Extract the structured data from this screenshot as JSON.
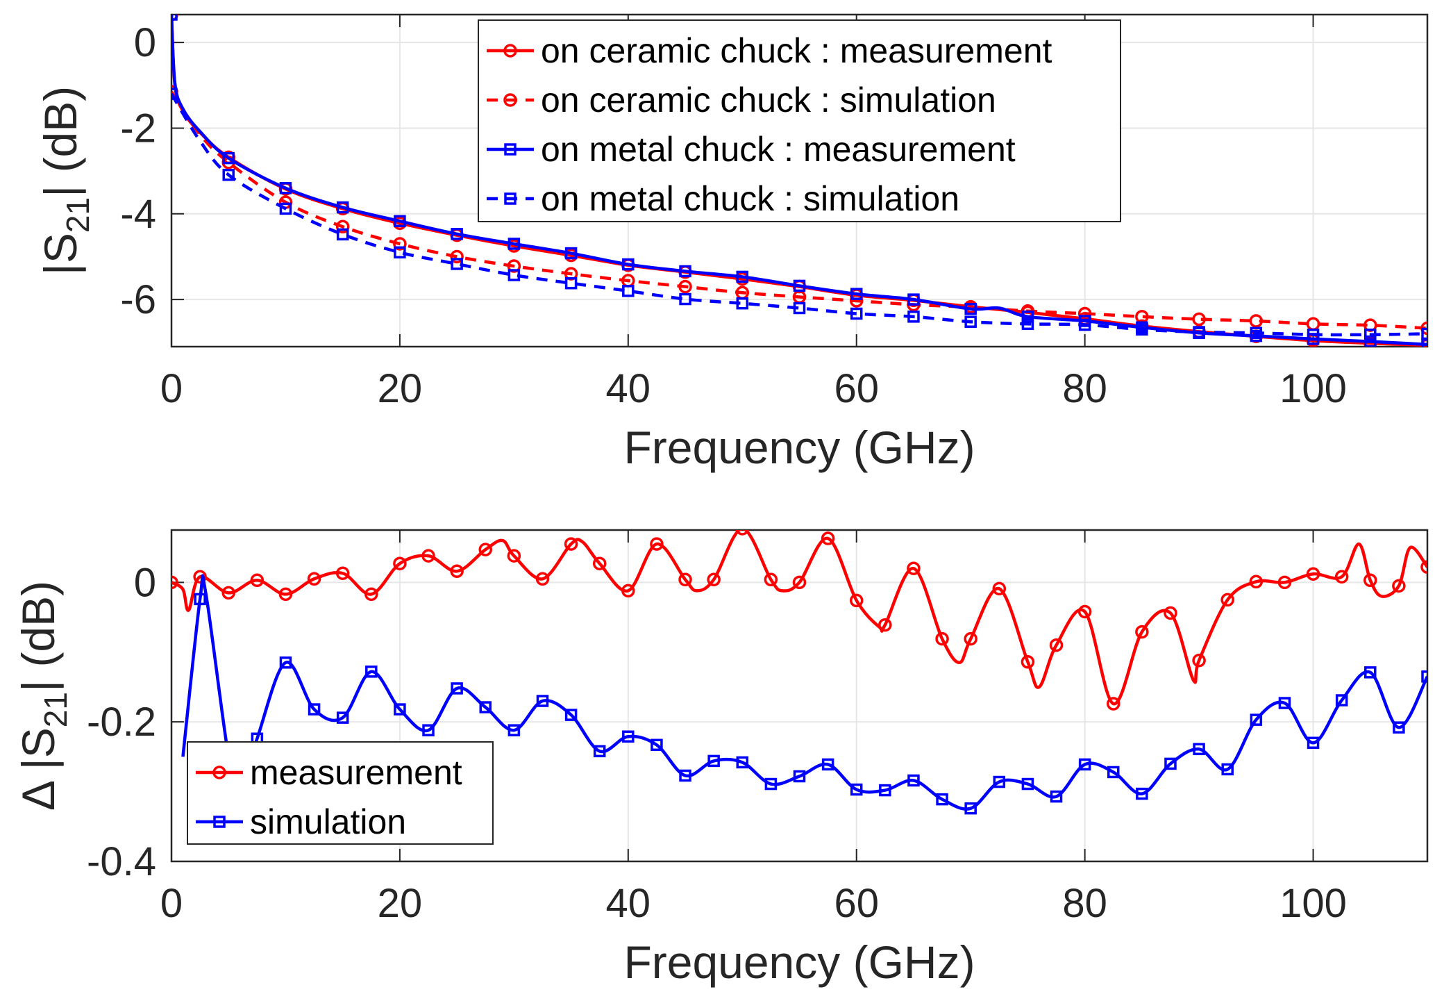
{
  "chart_data": [
    {
      "type": "line",
      "xlabel": "Frequency (GHz)",
      "ylabel": {
        "prefix": "|S",
        "sub": "21",
        "suffix": "| (dB)"
      },
      "xlim": [
        0,
        110
      ],
      "ylim": [
        -7.1,
        0.65
      ],
      "xticks": [
        0,
        20,
        40,
        60,
        80,
        100
      ],
      "yticks": [
        0,
        -2,
        -4,
        -6
      ],
      "xtick_labels": [
        "0",
        "20",
        "40",
        "60",
        "80",
        "100"
      ],
      "ytick_labels": [
        "0",
        "-2",
        "-4",
        "-6"
      ],
      "grid": true,
      "legend_position": "top-right",
      "series": [
        {
          "name": "on ceramic chuck : measurement",
          "color": "#ff0000",
          "dash": false,
          "marker": "circle",
          "x": [
            0,
            0.3,
            1,
            2.5,
            5,
            10,
            15,
            20,
            25,
            30,
            35,
            40,
            45,
            50,
            55,
            60,
            65,
            70,
            75,
            80,
            85,
            90,
            95,
            100,
            105,
            110
          ],
          "y": [
            0.65,
            -1.0,
            -1.6,
            -2.1,
            -2.68,
            -3.42,
            -3.88,
            -4.22,
            -4.5,
            -4.75,
            -4.97,
            -5.2,
            -5.36,
            -5.52,
            -5.7,
            -5.9,
            -6.02,
            -6.17,
            -6.3,
            -6.45,
            -6.62,
            -6.75,
            -6.86,
            -6.96,
            -7.02,
            -7.07
          ]
        },
        {
          "name": "on ceramic chuck : simulation",
          "color": "#ff0000",
          "dash": true,
          "marker": "circle",
          "x": [
            0,
            2.5,
            5,
            10,
            15,
            20,
            25,
            30,
            35,
            40,
            45,
            50,
            55,
            60,
            65,
            70,
            75,
            80,
            85,
            90,
            95,
            100,
            105,
            110
          ],
          "y": [
            -1.15,
            -2.15,
            -2.8,
            -3.73,
            -4.3,
            -4.7,
            -5.0,
            -5.22,
            -5.4,
            -5.56,
            -5.7,
            -5.84,
            -5.94,
            -6.03,
            -6.12,
            -6.18,
            -6.27,
            -6.33,
            -6.4,
            -6.46,
            -6.5,
            -6.57,
            -6.6,
            -6.67
          ]
        },
        {
          "name": "on metal chuck : measurement",
          "color": "#0000ff",
          "dash": false,
          "marker": "square",
          "x": [
            0,
            0.3,
            1,
            2.5,
            5,
            10,
            15,
            20,
            25,
            30,
            35,
            40,
            45,
            50,
            55,
            60,
            65,
            70,
            72.5,
            75,
            80,
            85,
            90,
            95,
            100,
            105,
            110
          ],
          "y": [
            0.65,
            -0.95,
            -1.55,
            -2.08,
            -2.7,
            -3.4,
            -3.85,
            -4.17,
            -4.47,
            -4.7,
            -4.92,
            -5.18,
            -5.34,
            -5.47,
            -5.68,
            -5.87,
            -6.0,
            -6.22,
            -6.2,
            -6.4,
            -6.5,
            -6.65,
            -6.78,
            -6.85,
            -6.92,
            -6.98,
            -7.05
          ]
        },
        {
          "name": "on metal chuck : simulation",
          "color": "#0000ff",
          "dash": true,
          "marker": "square",
          "x": [
            0,
            2.5,
            5,
            10,
            15,
            20,
            25,
            30,
            35,
            40,
            45,
            50,
            55,
            60,
            65,
            70,
            75,
            80,
            85,
            90,
            95,
            100,
            105,
            110
          ],
          "y": [
            -1.2,
            -2.3,
            -3.09,
            -3.88,
            -4.48,
            -4.9,
            -5.17,
            -5.43,
            -5.62,
            -5.8,
            -5.99,
            -6.09,
            -6.2,
            -6.33,
            -6.4,
            -6.52,
            -6.57,
            -6.59,
            -6.7,
            -6.76,
            -6.78,
            -6.82,
            -6.82,
            -6.8
          ]
        }
      ]
    },
    {
      "type": "line",
      "xlabel": "Frequency (GHz)",
      "ylabel": {
        "prefix": "Δ |S",
        "sub": "21",
        "suffix": "| (dB)"
      },
      "xlim": [
        0,
        110
      ],
      "ylim": [
        -0.4,
        0.075
      ],
      "xticks": [
        0,
        20,
        40,
        60,
        80,
        100
      ],
      "yticks": [
        0,
        -0.2,
        -0.4
      ],
      "xtick_labels": [
        "0",
        "20",
        "40",
        "60",
        "80",
        "100"
      ],
      "ytick_labels": [
        "0",
        "-0.2",
        "-0.4"
      ],
      "grid": true,
      "legend_position": "bottom-left",
      "series": [
        {
          "name": "measurement",
          "color": "#ff0000",
          "marker": "circle",
          "x": [
            0,
            1,
            1.5,
            2.5,
            5,
            7.5,
            10,
            12.5,
            15,
            17.5,
            20,
            22.5,
            25,
            27.5,
            29,
            30,
            32.5,
            35,
            36,
            37.5,
            40,
            42.5,
            45,
            46,
            47.5,
            50,
            52.5,
            53.5,
            55,
            57.5,
            60,
            62,
            62.5,
            65,
            67.5,
            69,
            70,
            72.5,
            75,
            76,
            77.5,
            80,
            82.5,
            85,
            87.5,
            89.5,
            90,
            92.5,
            95,
            97.5,
            100,
            102.5,
            104,
            105,
            106,
            107.5,
            108.5,
            110
          ],
          "y": [
            0,
            -0.01,
            -0.04,
            0.008,
            -0.015,
            0.003,
            -0.017,
            0.005,
            0.013,
            -0.017,
            0.027,
            0.038,
            0.016,
            0.047,
            0.06,
            0.038,
            0.005,
            0.055,
            0.058,
            0.027,
            -0.012,
            0.055,
            0.004,
            -0.012,
            0.004,
            0.077,
            0.004,
            -0.012,
            0,
            0.063,
            -0.026,
            -0.064,
            -0.061,
            0.02,
            -0.081,
            -0.115,
            -0.081,
            -0.009,
            -0.114,
            -0.15,
            -0.09,
            -0.042,
            -0.174,
            -0.071,
            -0.044,
            -0.14,
            -0.112,
            -0.025,
            0.001,
            0,
            0.012,
            0.008,
            0.055,
            0.003,
            -0.02,
            -0.005,
            0.05,
            0.022
          ]
        },
        {
          "name": "simulation",
          "color": "#0000ff",
          "marker": "square",
          "x": [
            1,
            2.5,
            3,
            5,
            6,
            7.5,
            10,
            12.5,
            15,
            17.5,
            20,
            22.5,
            25,
            27.5,
            30,
            32.5,
            35,
            37.5,
            40,
            42.5,
            45,
            47.5,
            50,
            52.5,
            55,
            57.5,
            60,
            62.5,
            65,
            67.5,
            70,
            72.5,
            75,
            77.5,
            80,
            82.5,
            85,
            87.5,
            90,
            92.5,
            95,
            97.5,
            100,
            102.5,
            105,
            107.5,
            110
          ],
          "y": [
            -0.25,
            -0.024,
            -0.015,
            -0.25,
            -0.3,
            -0.224,
            -0.115,
            -0.182,
            -0.194,
            -0.128,
            -0.182,
            -0.212,
            -0.152,
            -0.179,
            -0.212,
            -0.17,
            -0.19,
            -0.242,
            -0.221,
            -0.233,
            -0.277,
            -0.256,
            -0.258,
            -0.289,
            -0.278,
            -0.261,
            -0.297,
            -0.298,
            -0.284,
            -0.311,
            -0.324,
            -0.286,
            -0.289,
            -0.307,
            -0.261,
            -0.272,
            -0.303,
            -0.26,
            -0.239,
            -0.268,
            -0.197,
            -0.173,
            -0.23,
            -0.169,
            -0.129,
            -0.208,
            -0.135
          ]
        }
      ]
    }
  ]
}
